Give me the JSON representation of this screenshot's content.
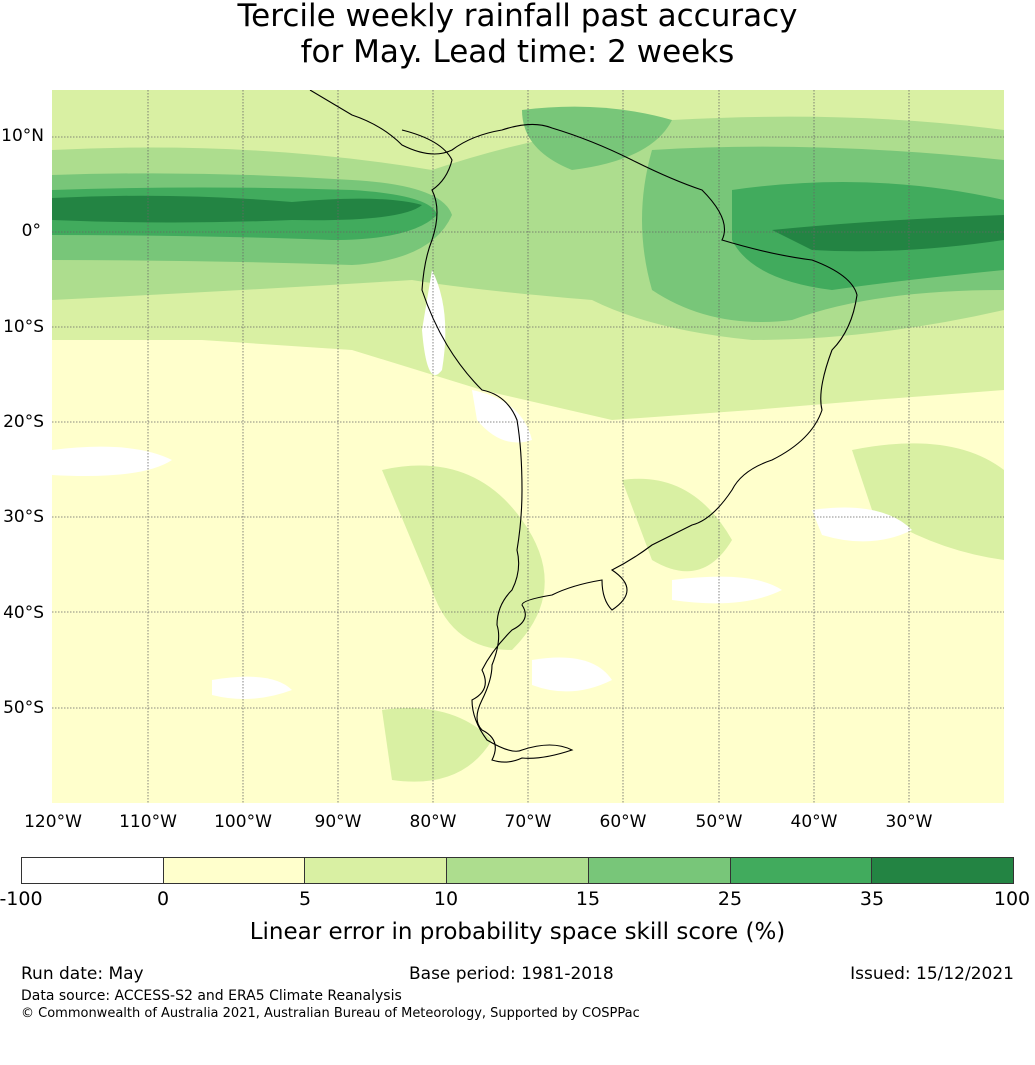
{
  "title": {
    "line1": "Tercile weekly rainfall past accuracy",
    "line2": "for May. Lead time: 2 weeks"
  },
  "map": {
    "lat_labels": [
      "10°N",
      "0°",
      "10°S",
      "20°S",
      "30°S",
      "40°S",
      "50°S"
    ],
    "lon_labels": [
      "120°W",
      "110°W",
      "100°W",
      "90°W",
      "80°W",
      "70°W",
      "60°W",
      "50°W",
      "40°W",
      "30°W"
    ]
  },
  "colorbar": {
    "ticks": [
      "-100",
      "0",
      "5",
      "10",
      "15",
      "25",
      "35",
      "100"
    ],
    "colors": [
      "#ffffff",
      "#ffffcc",
      "#d9f0a3",
      "#addd8e",
      "#78c679",
      "#41ab5d",
      "#238443"
    ],
    "label": "Linear error in probability space skill score (%)"
  },
  "footer": {
    "run_date": "Run date: May",
    "base_period": "Base period: 1981-2018",
    "issued": "Issued: 15/12/2021",
    "data_source": "Data source: ACCESS-S2 and ERA5 Climate Reanalysis",
    "copyright": "© Commonwealth of Australia 2021, Australian Bureau of Meteorology, Supported by COSPPac"
  }
}
